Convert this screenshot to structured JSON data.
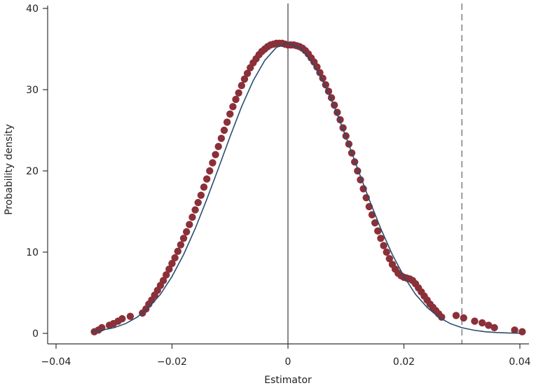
{
  "chart_data": {
    "type": "scatter",
    "title": "",
    "xlabel": "Estimator",
    "ylabel": "Probability density",
    "xlim": [
      -0.042,
      0.042
    ],
    "ylim": [
      -1,
      40.5
    ],
    "xticks": [
      -0.04,
      -0.02,
      0,
      0.02,
      0.04
    ],
    "xtick_labels": [
      "−0.04",
      "−0.02",
      "0",
      "0.02",
      "0.04"
    ],
    "yticks": [
      0,
      10,
      20,
      30,
      40
    ],
    "ytick_labels": [
      "0",
      "10",
      "20",
      "30",
      "40"
    ],
    "grid": false,
    "colors": {
      "points": "#8b3038",
      "curve": "#2a4d6e",
      "zero_line": "#555555",
      "dashed_line": "#999999",
      "axis": "#333333"
    },
    "reference_lines": [
      {
        "x": 0,
        "style": "solid"
      },
      {
        "x": 0.03,
        "style": "dashed"
      }
    ],
    "series": [
      {
        "style": "points",
        "x": [
          -0.0334,
          -0.0327,
          -0.0321,
          -0.0308,
          -0.0301,
          -0.0293,
          -0.0286,
          -0.0272,
          -0.0251,
          -0.0245,
          -0.024,
          -0.0235,
          -0.023,
          -0.0225,
          -0.022,
          -0.0215,
          -0.021,
          -0.0205,
          -0.02,
          -0.0195,
          -0.019,
          -0.0185,
          -0.018,
          -0.0175,
          -0.017,
          -0.0165,
          -0.016,
          -0.0155,
          -0.015,
          -0.0145,
          -0.014,
          -0.0135,
          -0.013,
          -0.0125,
          -0.012,
          -0.0115,
          -0.011,
          -0.0105,
          -0.01,
          -0.0095,
          -0.009,
          -0.0085,
          -0.008,
          -0.0075,
          -0.007,
          -0.0065,
          -0.006,
          -0.0055,
          -0.005,
          -0.0045,
          -0.004,
          -0.0035,
          -0.003,
          -0.0025,
          -0.002,
          -0.0015,
          -0.001,
          -0.0005,
          0,
          0.0005,
          0.001,
          0.0015,
          0.002,
          0.0025,
          0.003,
          0.0035,
          0.004,
          0.0045,
          0.005,
          0.0055,
          0.006,
          0.0065,
          0.007,
          0.0075,
          0.008,
          0.0085,
          0.009,
          0.0095,
          0.01,
          0.0105,
          0.011,
          0.0115,
          0.012,
          0.0125,
          0.013,
          0.0135,
          0.014,
          0.0145,
          0.015,
          0.0155,
          0.016,
          0.0165,
          0.017,
          0.0175,
          0.018,
          0.0185,
          0.019,
          0.0195,
          0.02,
          0.0205,
          0.021,
          0.0215,
          0.022,
          0.0225,
          0.023,
          0.0235,
          0.024,
          0.0245,
          0.025,
          0.0255,
          0.026,
          0.0265,
          0.029,
          0.0303,
          0.0322,
          0.0335,
          0.0346,
          0.0356,
          0.0391,
          0.0404
        ],
        "y": [
          0.2,
          0.4,
          0.7,
          1.0,
          1.2,
          1.5,
          1.8,
          2.1,
          2.5,
          3.0,
          3.6,
          4.1,
          4.7,
          5.3,
          5.9,
          6.5,
          7.2,
          7.9,
          8.6,
          9.3,
          10.1,
          10.9,
          11.7,
          12.5,
          13.4,
          14.3,
          15.2,
          16.1,
          17.0,
          18.0,
          19.0,
          20.0,
          21.0,
          22.0,
          23.0,
          24.0,
          25.0,
          26.0,
          27.0,
          27.9,
          28.8,
          29.6,
          30.5,
          31.3,
          32.0,
          32.7,
          33.3,
          33.8,
          34.3,
          34.7,
          35.0,
          35.3,
          35.5,
          35.6,
          35.7,
          35.7,
          35.7,
          35.6,
          35.5,
          35.5,
          35.5,
          35.4,
          35.3,
          35.1,
          34.8,
          34.4,
          33.9,
          33.4,
          32.8,
          32.1,
          31.4,
          30.6,
          29.8,
          29.0,
          28.1,
          27.2,
          26.3,
          25.3,
          24.3,
          23.3,
          22.2,
          21.1,
          20.0,
          18.9,
          17.8,
          16.7,
          15.6,
          14.6,
          13.6,
          12.6,
          11.7,
          10.8,
          10.0,
          9.2,
          8.5,
          7.9,
          7.4,
          7.1,
          6.9,
          6.8,
          6.7,
          6.5,
          6.1,
          5.6,
          5.1,
          4.6,
          4.1,
          3.6,
          3.2,
          2.8,
          2.4,
          2.0,
          2.2,
          1.9,
          1.5,
          1.3,
          1.0,
          0.7,
          0.4,
          0.2
        ]
      },
      {
        "style": "line",
        "x": [
          -0.0339,
          -0.032,
          -0.03,
          -0.028,
          -0.026,
          -0.024,
          -0.022,
          -0.02,
          -0.018,
          -0.016,
          -0.014,
          -0.012,
          -0.01,
          -0.008,
          -0.006,
          -0.004,
          -0.002,
          0.0,
          0.002,
          0.004,
          0.006,
          0.008,
          0.01,
          0.012,
          0.014,
          0.016,
          0.018,
          0.02,
          0.022,
          0.024,
          0.026,
          0.028,
          0.03,
          0.032,
          0.034,
          0.036,
          0.038,
          0.04
        ],
        "y": [
          0.2,
          0.4,
          0.7,
          1.2,
          2.0,
          3.2,
          4.8,
          7.0,
          9.7,
          12.9,
          16.5,
          20.3,
          24.2,
          27.9,
          31.1,
          33.6,
          35.2,
          35.7,
          35.2,
          33.6,
          31.1,
          27.9,
          24.2,
          20.3,
          16.5,
          12.9,
          9.7,
          7.0,
          4.8,
          3.2,
          2.0,
          1.2,
          0.7,
          0.4,
          0.2,
          0.1,
          0.05,
          0.02
        ]
      }
    ]
  }
}
